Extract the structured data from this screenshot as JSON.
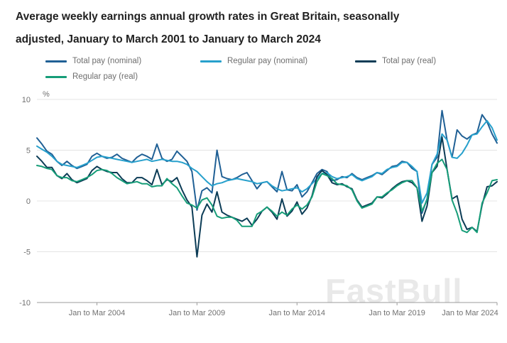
{
  "title_line1": "Average weekly earnings annual growth rates in Great Britain, seasonally",
  "title_line2": "adjusted, January to March 2001 to January to March 2024",
  "watermark": "FastBull",
  "chart_data": {
    "type": "line",
    "title": "Average weekly earnings annual growth rates in Great Britain, seasonally adjusted, January to March 2001 to January to March 2024",
    "unit_label": "%",
    "ylim": [
      -10,
      10
    ],
    "yticks": [
      10,
      5,
      0,
      -5,
      -10
    ],
    "grid": "horizontal",
    "legend_position": "top",
    "x_tick_labels": [
      "Jan to Mar 2004",
      "Jan to Mar 2009",
      "Jan to Mar 2014",
      "Jan to Mar 2019",
      "Jan to Mar 2024"
    ],
    "x_tick_indices": [
      12,
      32,
      52,
      72,
      92
    ],
    "x_range_description": "Quarterly points from Jan to Mar 2001 through Jan to Mar 2024",
    "series": [
      {
        "name": "Total pay (nominal)",
        "color": "#206095",
        "values": [
          6.2,
          5.6,
          4.9,
          4.6,
          3.9,
          3.5,
          3.9,
          3.5,
          3.2,
          3.4,
          3.6,
          4.4,
          4.7,
          4.4,
          4.2,
          4.3,
          4.6,
          4.2,
          4.0,
          3.8,
          4.3,
          4.6,
          4.4,
          4.1,
          5.6,
          4.2,
          3.9,
          4.1,
          4.9,
          4.4,
          3.9,
          2.9,
          -0.9,
          1.0,
          1.3,
          0.8,
          5.0,
          2.4,
          2.2,
          2.1,
          2.3,
          2.6,
          2.8,
          2.0,
          1.2,
          1.8,
          1.9,
          1.4,
          0.9,
          2.9,
          1.1,
          1.0,
          1.6,
          0.4,
          0.9,
          1.8,
          2.7,
          3.1,
          2.9,
          2.0,
          2.1,
          2.4,
          2.3,
          2.7,
          2.3,
          2.1,
          2.3,
          2.5,
          2.8,
          2.6,
          3.0,
          3.4,
          3.5,
          3.9,
          3.8,
          3.2,
          2.9,
          -1.2,
          0.2,
          3.6,
          4.3,
          8.9,
          6.0,
          4.3,
          7.0,
          6.4,
          6.1,
          6.5,
          6.7,
          8.5,
          7.8,
          6.6,
          5.7
        ]
      },
      {
        "name": "Regular pay (nominal)",
        "color": "#27A0CC",
        "values": [
          5.4,
          5.1,
          4.8,
          4.4,
          3.9,
          3.6,
          3.5,
          3.4,
          3.3,
          3.5,
          3.7,
          4.0,
          4.3,
          4.4,
          4.3,
          4.2,
          4.1,
          4.0,
          3.9,
          3.8,
          3.9,
          4.0,
          4.1,
          3.9,
          4.0,
          4.1,
          4.0,
          3.9,
          3.9,
          3.8,
          3.6,
          3.2,
          2.9,
          2.4,
          1.9,
          1.5,
          1.7,
          1.8,
          2.0,
          2.1,
          2.2,
          2.1,
          2.0,
          1.9,
          1.7,
          1.8,
          1.9,
          1.5,
          1.2,
          1.0,
          1.1,
          1.2,
          1.3,
          0.9,
          1.2,
          1.7,
          2.2,
          2.7,
          2.8,
          2.4,
          2.2,
          2.3,
          2.4,
          2.6,
          2.2,
          2.0,
          2.2,
          2.4,
          2.8,
          2.7,
          3.1,
          3.3,
          3.4,
          3.8,
          3.8,
          3.4,
          2.9,
          -0.2,
          0.8,
          3.6,
          4.6,
          6.6,
          6.0,
          4.3,
          4.2,
          4.7,
          5.5,
          6.5,
          6.6,
          7.3,
          7.9,
          7.2,
          6.0
        ]
      },
      {
        "name": "Total pay (real)",
        "color": "#0c3c56",
        "values": [
          4.4,
          3.9,
          3.3,
          3.3,
          2.5,
          2.2,
          2.7,
          2.1,
          1.8,
          2.0,
          2.2,
          3.0,
          3.4,
          3.1,
          2.9,
          2.8,
          2.8,
          2.2,
          1.8,
          1.8,
          2.3,
          2.3,
          2.0,
          1.6,
          3.1,
          1.6,
          2.1,
          1.9,
          2.3,
          1.1,
          0.1,
          -0.6,
          -5.5,
          -1.4,
          -0.3,
          -1.1,
          0.9,
          -1.1,
          -1.4,
          -1.6,
          -1.8,
          -2.0,
          -1.7,
          -2.4,
          -1.8,
          -1.0,
          -0.6,
          -1.1,
          -1.8,
          0.2,
          -1.5,
          -1.0,
          -0.1,
          -1.3,
          -0.7,
          0.5,
          2.4,
          3.0,
          2.6,
          1.8,
          1.6,
          1.7,
          1.4,
          1.2,
          0.1,
          -0.6,
          -0.4,
          -0.2,
          0.4,
          0.3,
          0.7,
          1.2,
          1.6,
          1.9,
          2.0,
          1.8,
          1.3,
          -2.0,
          -0.5,
          2.8,
          3.4,
          6.3,
          3.1,
          0.2,
          0.5,
          -1.8,
          -2.8,
          -2.6,
          -3.0,
          -0.4,
          1.4,
          1.5,
          1.9
        ]
      },
      {
        "name": "Regular pay (real)",
        "color": "#169d78",
        "values": [
          3.5,
          3.4,
          3.2,
          3.1,
          2.5,
          2.3,
          2.3,
          2.0,
          1.9,
          2.1,
          2.3,
          2.6,
          3.0,
          3.1,
          3.0,
          2.7,
          2.3,
          2.0,
          1.7,
          1.8,
          1.9,
          1.7,
          1.7,
          1.4,
          1.5,
          1.5,
          2.2,
          1.7,
          1.3,
          0.5,
          -0.2,
          -0.4,
          -0.7,
          0.1,
          0.3,
          -0.4,
          -1.5,
          -1.7,
          -1.6,
          -1.6,
          -1.9,
          -2.5,
          -2.5,
          -2.5,
          -1.3,
          -1.0,
          -0.6,
          -1.0,
          -1.5,
          -1.1,
          -1.4,
          -0.8,
          -0.4,
          -0.8,
          -0.4,
          0.4,
          1.9,
          2.7,
          2.5,
          2.2,
          1.7,
          1.6,
          1.5,
          1.1,
          0.0,
          -0.7,
          -0.5,
          -0.3,
          0.4,
          0.4,
          0.8,
          1.1,
          1.5,
          1.8,
          2.0,
          2.0,
          1.3,
          -1.0,
          0.1,
          2.8,
          3.7,
          4.1,
          3.1,
          0.1,
          -1.2,
          -2.9,
          -3.1,
          -2.6,
          -3.1,
          -0.2,
          0.8,
          2.0,
          2.1
        ]
      }
    ]
  }
}
